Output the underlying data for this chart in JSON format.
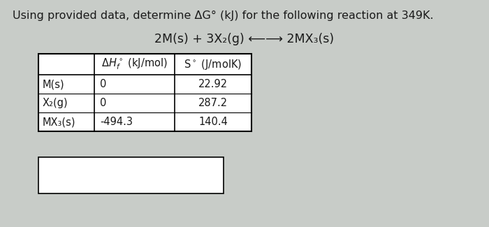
{
  "title": "Using provided data, determine ΔG° (kJ) for the following reaction at 349K.",
  "reaction": "2M(s) + 3X₂(g) ⟵⟶ 2MX₃(s)",
  "row_labels": [
    "M(s)",
    "X₂(g)",
    "MX₃(s)"
  ],
  "dH_values": [
    "0",
    "0",
    "-494.3"
  ],
  "S_values": [
    "22.92",
    "287.2",
    "140.4"
  ],
  "bg_color": "#c8ccc8",
  "cell_bg": "#e8ebe8",
  "text_color": "#1a1a1a",
  "font_size_title": 11.5,
  "font_size_reaction": 12.5,
  "font_size_table": 10.5
}
